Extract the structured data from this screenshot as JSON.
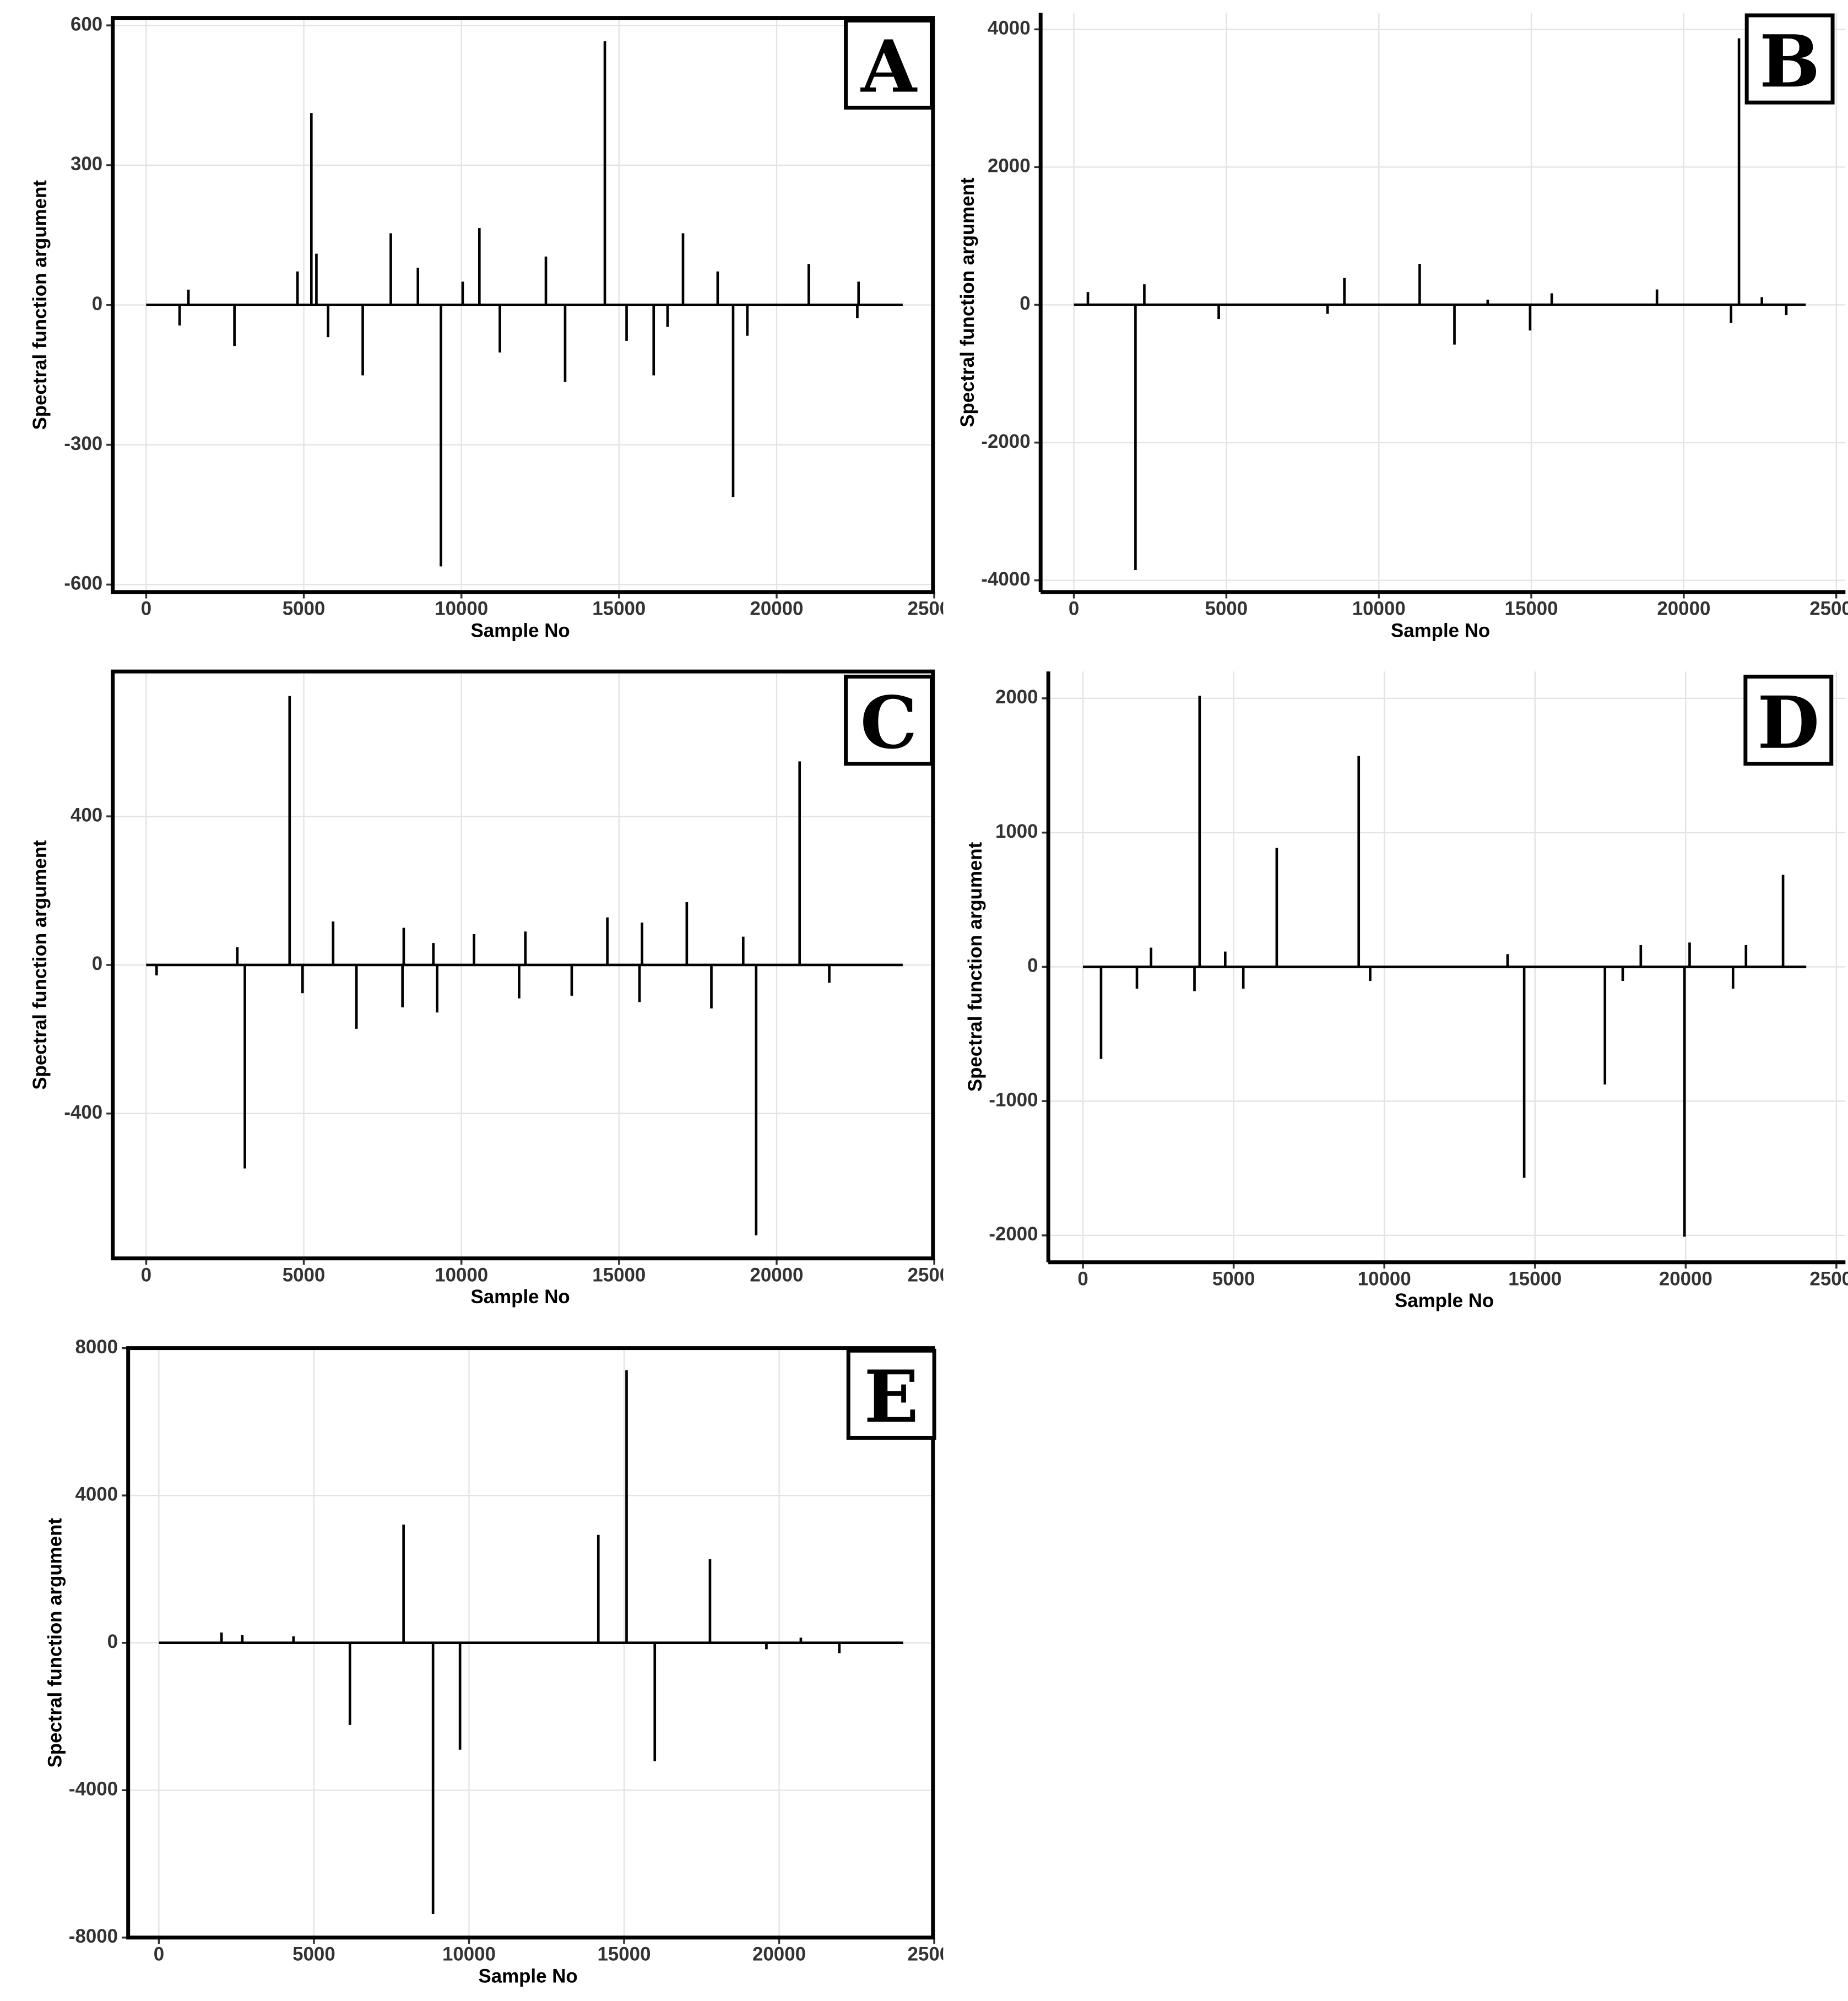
{
  "chart_data": [
    {
      "type": "needle",
      "title": "A",
      "x_label": "Sample No",
      "y_label": "Spectral function argument",
      "color": "#000000",
      "grid": true,
      "xlim": [
        -1060,
        24960
      ],
      "ylim": [
        -616,
        616
      ],
      "xticks": [
        0,
        5000,
        10000,
        15000,
        20000,
        25000
      ],
      "yticks": [
        -600,
        -300,
        0,
        300,
        600
      ],
      "x": [
        1060,
        1340,
        2800,
        4800,
        5240,
        5400,
        5770,
        6870,
        7760,
        8620,
        9350,
        10040,
        10570,
        11220,
        12680,
        13290,
        14550,
        15240,
        16100,
        16540,
        17030,
        18130,
        18620,
        19070,
        21020,
        22560,
        22600
      ],
      "values": [
        -44,
        33,
        -88,
        72,
        412,
        110,
        -69,
        -151,
        154,
        80,
        -561,
        50,
        165,
        -102,
        104,
        -165,
        566,
        -77,
        -151,
        -47,
        154,
        72,
        -412,
        -66,
        88,
        -28,
        50
      ]
    },
    {
      "type": "needle",
      "title": "B",
      "x_label": "Sample No",
      "y_label": "Spectral function argument",
      "color": "#000000",
      "grid": true,
      "xlim": [
        -1090,
        25300
      ],
      "ylim": [
        -4170,
        4240
      ],
      "xticks": [
        0,
        5000,
        10000,
        15000,
        20000,
        25000
      ],
      "yticks": [
        -4000,
        -2000,
        0,
        2000,
        4000
      ],
      "x": [
        460,
        2020,
        2310,
        4750,
        8320,
        8870,
        11340,
        12480,
        13570,
        14960,
        15670,
        19120,
        21550,
        21810,
        22560,
        23360
      ],
      "values": [
        186,
        -3850,
        298,
        -205,
        -130,
        390,
        595,
        -577,
        75,
        -372,
        167,
        223,
        -260,
        3870,
        112,
        -149
      ]
    },
    {
      "type": "needle",
      "title": "C",
      "x_label": "Sample No",
      "y_label": "Spectral function argument",
      "color": "#000000",
      "grid": true,
      "xlim": [
        -1060,
        24960
      ],
      "ylim": [
        -790,
        790
      ],
      "xticks": [
        0,
        5000,
        10000,
        15000,
        20000,
        25000
      ],
      "yticks": [
        -400,
        0,
        400
      ],
      "x": [
        330,
        2890,
        3130,
        4550,
        4960,
        5930,
        6670,
        8130,
        8170,
        9110,
        9230,
        10400,
        11830,
        12030,
        13500,
        14630,
        15650,
        15730,
        17150,
        17930,
        18940,
        19350,
        20730,
        21670
      ],
      "values": [
        -28,
        48,
        -548,
        724,
        -76,
        117,
        -172,
        -114,
        100,
        59,
        -128,
        83,
        -90,
        90,
        -83,
        128,
        -100,
        114,
        169,
        -117,
        76,
        -728,
        548,
        -48
      ]
    },
    {
      "type": "needle",
      "title": "D",
      "x_label": "Sample No",
      "y_label": "Spectral function argument",
      "color": "#000000",
      "grid": true,
      "xlim": [
        -1150,
        25300
      ],
      "ylim": [
        -2200,
        2200
      ],
      "xticks": [
        0,
        5000,
        10000,
        15000,
        20000,
        25000
      ],
      "yticks": [
        -2000,
        -1000,
        0,
        1000,
        2000
      ],
      "x": [
        600,
        1790,
        2260,
        3700,
        3870,
        4720,
        5320,
        6430,
        9150,
        9530,
        14090,
        14640,
        17320,
        17910,
        18510,
        19960,
        20130,
        21570,
        22000,
        23230
      ],
      "values": [
        -686,
        -162,
        143,
        -181,
        2019,
        114,
        -162,
        886,
        1571,
        -105,
        95,
        -1571,
        -876,
        -105,
        162,
        -2010,
        181,
        -162,
        162,
        686
      ]
    },
    {
      "type": "needle",
      "title": "E",
      "x_label": "Sample No",
      "y_label": "Spectral function argument",
      "color": "#000000",
      "grid": true,
      "xlim": [
        -990,
        24960
      ],
      "ylim": [
        -8000,
        8000
      ],
      "xticks": [
        0,
        5000,
        10000,
        15000,
        20000,
        25000
      ],
      "yticks": [
        -8000,
        -4000,
        0,
        4000,
        8000
      ],
      "x": [
        2020,
        2690,
        4340,
        6160,
        7890,
        8840,
        9710,
        14170,
        15080,
        15990,
        17770,
        19590,
        20700,
        21940
      ],
      "values": [
        280,
        210,
        175,
        -2230,
        3210,
        -7360,
        -2900,
        2930,
        7400,
        -3210,
        2270,
        -175,
        140,
        -280
      ]
    }
  ]
}
